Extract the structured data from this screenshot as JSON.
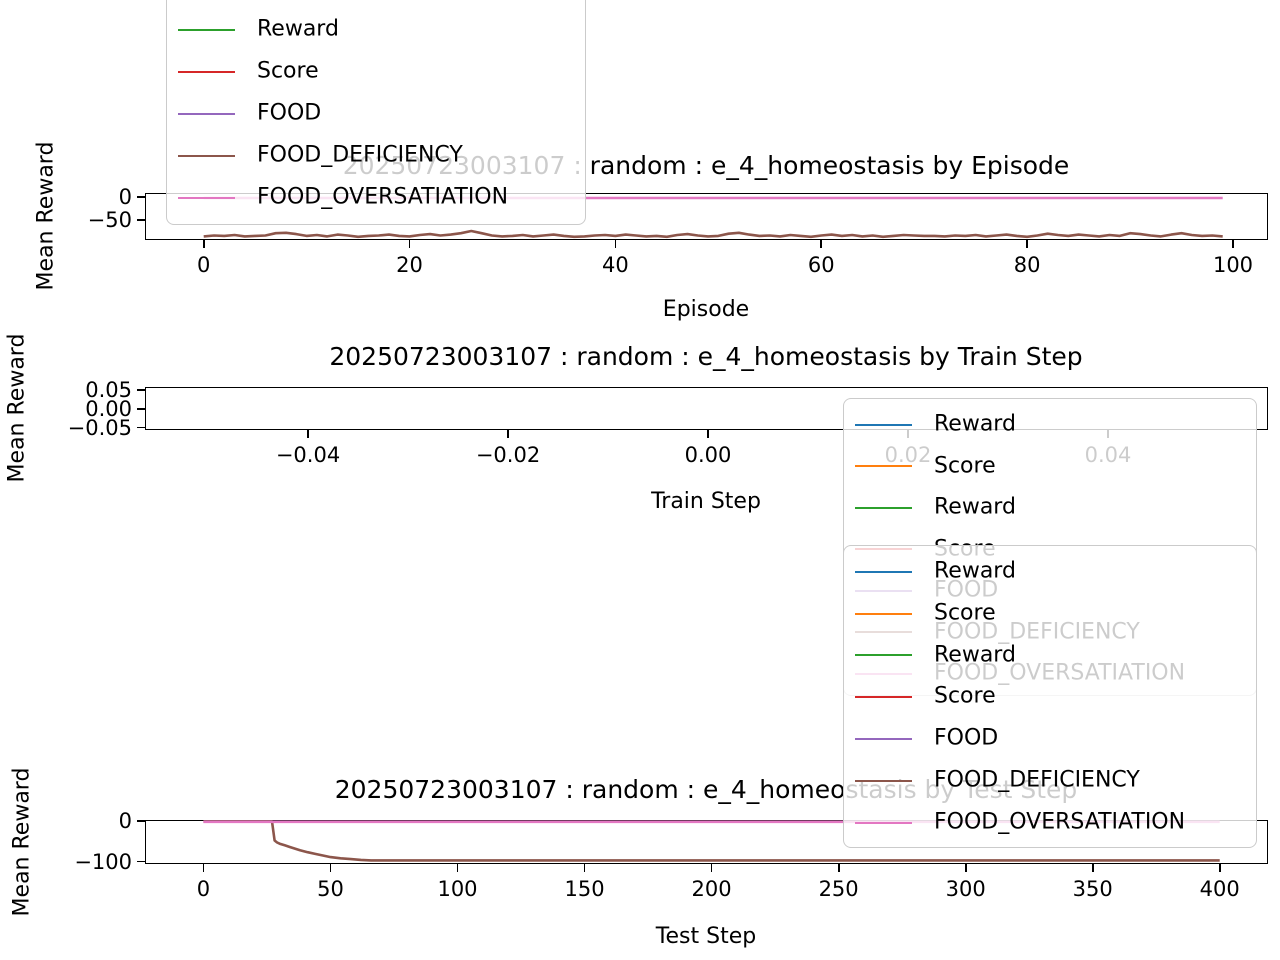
{
  "figure": {
    "background": "#ffffff",
    "text_color": "#000000",
    "spine_color": "#000000",
    "legend_border_color": "#cbcbcb"
  },
  "palette": {
    "blue": "#1f77b4",
    "orange": "#ff7f0e",
    "green": "#2ca02c",
    "red": "#d62728",
    "purple": "#9467bd",
    "brown": "#8c564b",
    "pink": "#e377c2"
  },
  "chart_data": [
    {
      "type": "line",
      "title": "20250723003107 : random : e_4_homeostasis by Episode",
      "xlabel": "Episode",
      "ylabel": "Mean Reward",
      "xlim": [
        -5.7,
        103.4
      ],
      "ylim": [
        -95,
        9
      ],
      "xticks": [
        0,
        20,
        40,
        60,
        80,
        100
      ],
      "xtick_labels": [
        "0",
        "20",
        "40",
        "60",
        "80",
        "100"
      ],
      "yticks": [
        0,
        -50
      ],
      "ytick_labels": [
        "0",
        "−50"
      ],
      "grid": false,
      "legend": {
        "position": "upper-left",
        "entries": [
          {
            "label": "Reward",
            "color": "#2ca02c"
          },
          {
            "label": "Score",
            "color": "#d62728"
          },
          {
            "label": "FOOD",
            "color": "#9467bd"
          },
          {
            "label": "FOOD_DEFICIENCY",
            "color": "#8c564b"
          },
          {
            "label": "FOOD_OVERSATIATION",
            "color": "#e377c2"
          }
        ]
      },
      "series": [
        {
          "name": "FOOD_DEFICIENCY",
          "color": "#8c564b",
          "y": [
            -87,
            -85,
            -86,
            -84,
            -87,
            -86,
            -85,
            -80,
            -79,
            -82,
            -86,
            -84,
            -87,
            -83,
            -85,
            -88,
            -86,
            -85,
            -83,
            -86,
            -87,
            -84,
            -82,
            -85,
            -83,
            -80,
            -75,
            -80,
            -85,
            -87,
            -86,
            -84,
            -87,
            -85,
            -83,
            -86,
            -88,
            -87,
            -85,
            -84,
            -86,
            -83,
            -85,
            -87,
            -86,
            -88,
            -84,
            -82,
            -85,
            -87,
            -86,
            -81,
            -79,
            -83,
            -86,
            -85,
            -87,
            -84,
            -86,
            -88,
            -85,
            -83,
            -86,
            -84,
            -87,
            -85,
            -88,
            -86,
            -84,
            -85,
            -86,
            -86,
            -87,
            -85,
            -86,
            -84,
            -87,
            -85,
            -83,
            -86,
            -88,
            -85,
            -81,
            -84,
            -86,
            -83,
            -85,
            -87,
            -84,
            -86,
            -80,
            -82,
            -85,
            -87,
            -83,
            -80,
            -84,
            -86,
            -85,
            -87
          ]
        },
        {
          "name": "FOOD_OVERSATIATION",
          "color": "#e377c2",
          "x": [
            0,
            99
          ],
          "y": [
            -2,
            -2
          ]
        }
      ]
    },
    {
      "type": "line",
      "title": "20250723003107 : random : e_4_homeostasis by Train Step",
      "xlabel": "Train Step",
      "ylabel": "Mean Reward",
      "xlim": [
        -0.0563,
        0.056
      ],
      "ylim": [
        -0.0566,
        0.0579
      ],
      "xticks": [
        -0.04,
        -0.02,
        0.0,
        0.02,
        0.04
      ],
      "xtick_labels": [
        "−0.04",
        "−0.02",
        "0.00",
        "0.02",
        "0.04"
      ],
      "yticks": [
        0.05,
        0.0,
        -0.05
      ],
      "ytick_labels": [
        "0.05",
        "0.00",
        "−0.05"
      ],
      "grid": false,
      "legend": {
        "position": "center-right",
        "entries": [
          {
            "label": "Reward",
            "color": "#1f77b4"
          },
          {
            "label": "Score",
            "color": "#ff7f0e"
          },
          {
            "label": "Reward",
            "color": "#2ca02c"
          },
          {
            "label": "Score",
            "color": "#d62728"
          },
          {
            "label": "FOOD",
            "color": "#9467bd"
          },
          {
            "label": "FOOD_DEFICIENCY",
            "color": "#8c564b"
          },
          {
            "label": "FOOD_OVERSATIATION",
            "color": "#e377c2"
          }
        ]
      },
      "series": []
    },
    {
      "type": "line",
      "title": "20250723003107 : random : e_4_homeostasis by Test Step",
      "xlabel": "Test Step",
      "ylabel": "Mean Reward",
      "xlim": [
        -23,
        419
      ],
      "ylim": [
        -106,
        2.5
      ],
      "xticks": [
        0,
        50,
        100,
        150,
        200,
        250,
        300,
        350,
        400
      ],
      "xtick_labels": [
        "0",
        "50",
        "100",
        "150",
        "200",
        "250",
        "300",
        "350",
        "400"
      ],
      "yticks": [
        0,
        -100
      ],
      "ytick_labels": [
        "0",
        "−100"
      ],
      "grid": false,
      "legend": {
        "position": "upper-right",
        "entries": [
          {
            "label": "Reward",
            "color": "#1f77b4"
          },
          {
            "label": "Score",
            "color": "#ff7f0e"
          },
          {
            "label": "Reward",
            "color": "#2ca02c"
          },
          {
            "label": "Score",
            "color": "#d62728"
          },
          {
            "label": "FOOD",
            "color": "#9467bd"
          },
          {
            "label": "FOOD_DEFICIENCY",
            "color": "#8c564b"
          },
          {
            "label": "FOOD_OVERSATIATION",
            "color": "#e377c2"
          }
        ]
      },
      "series": [
        {
          "name": "FOOD_DEFICIENCY",
          "color": "#8c564b",
          "x": [
            0,
            27,
            28,
            29,
            30,
            32,
            34,
            36,
            38,
            41,
            44,
            47,
            50,
            54,
            58,
            62,
            66,
            70,
            80,
            100,
            150,
            200,
            250,
            300,
            350,
            400
          ],
          "y": [
            -1,
            -1,
            -48,
            -53,
            -56,
            -60,
            -64,
            -68,
            -72,
            -77,
            -81,
            -85,
            -89,
            -92,
            -94,
            -96,
            -97,
            -97,
            -97,
            -97,
            -97,
            -97,
            -97,
            -97,
            -97,
            -97
          ]
        },
        {
          "name": "FOOD_OVERSATIATION",
          "color": "#e377c2",
          "x": [
            0,
            400
          ],
          "y": [
            -2,
            -2
          ]
        }
      ]
    }
  ]
}
